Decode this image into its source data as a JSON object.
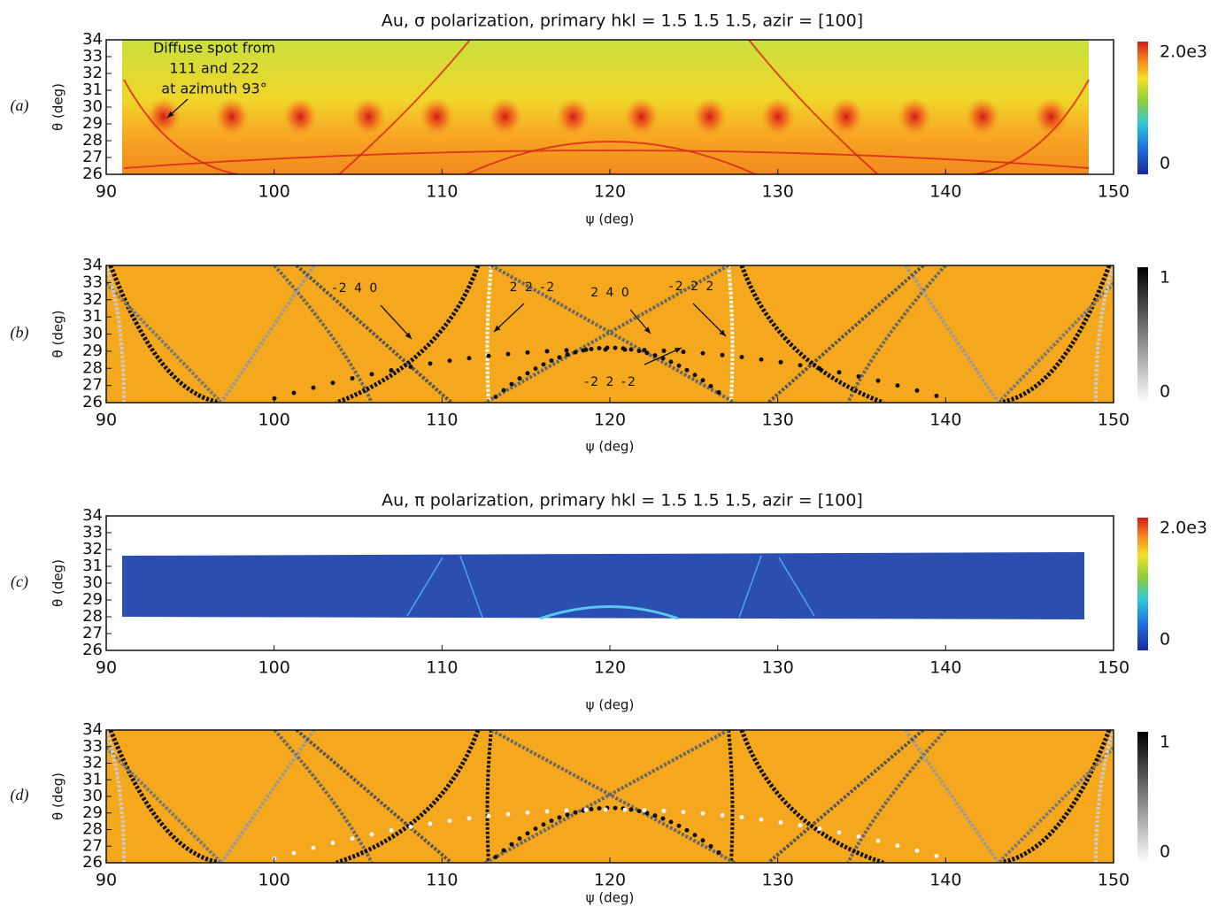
{
  "chart_data": [
    {
      "type": "image",
      "panel_label": "(a)",
      "title": "Au, σ polarization, primary hkl = 1.5 1.5 1.5, azir = [100]",
      "xlabel": "ψ (deg)",
      "ylabel": "θ (deg)",
      "xlim": [
        90,
        150
      ],
      "xticks": [
        90,
        100,
        110,
        120,
        130,
        140,
        150
      ],
      "ylim": [
        26,
        34
      ],
      "yticks": [
        26,
        27,
        28,
        29,
        30,
        31,
        32,
        33,
        34
      ],
      "colormap": "jet",
      "colorbar_lim": [
        0,
        2000
      ],
      "colorbar_ticks": [
        {
          "value": 0,
          "label": "0"
        },
        {
          "value": 2000,
          "label": "2.0e3"
        }
      ],
      "annotations": [
        "Diffuse spot from",
        "111 and 222",
        "at azimuth 93°"
      ]
    },
    {
      "type": "image",
      "panel_label": "(b)",
      "xlabel": "ψ (deg)",
      "ylabel": "θ (deg)",
      "xlim": [
        90,
        150
      ],
      "xticks": [
        90,
        100,
        110,
        120,
        130,
        140,
        150
      ],
      "ylim": [
        26,
        34
      ],
      "yticks": [
        26,
        27,
        28,
        29,
        30,
        31,
        32,
        33,
        34
      ],
      "colormap": "gray",
      "colorbar_lim": [
        0,
        1
      ],
      "colorbar_ticks": [
        0,
        1
      ],
      "annotations": [
        "-2 4 0",
        "2 2 -2",
        "2 4 0",
        "-2 2 2",
        "-2 2 -2"
      ]
    },
    {
      "type": "image",
      "panel_label": "(c)",
      "title": "Au, π polarization, primary hkl = 1.5 1.5 1.5, azir = [100]",
      "xlabel": "ψ (deg)",
      "ylabel": "θ (deg)",
      "xlim": [
        90,
        150
      ],
      "xticks": [
        90,
        100,
        110,
        120,
        130,
        140,
        150
      ],
      "ylim": [
        26,
        34
      ],
      "yticks": [
        26,
        27,
        28,
        29,
        30,
        31,
        32,
        33,
        34
      ],
      "colormap": "jet",
      "colorbar_lim": [
        0,
        2000
      ],
      "colorbar_ticks": [
        {
          "value": 0,
          "label": "0"
        },
        {
          "value": 2000,
          "label": "2.0e3"
        }
      ]
    },
    {
      "type": "image",
      "panel_label": "(d)",
      "xlabel": "ψ (deg)",
      "ylabel": "θ (deg)",
      "xlim": [
        90,
        150
      ],
      "xticks": [
        90,
        100,
        110,
        120,
        130,
        140,
        150
      ],
      "ylim": [
        26,
        34
      ],
      "yticks": [
        26,
        27,
        28,
        29,
        30,
        31,
        32,
        33,
        34
      ],
      "colormap": "gray",
      "colorbar_lim": [
        0,
        1
      ],
      "colorbar_ticks": [
        0,
        1
      ]
    }
  ]
}
